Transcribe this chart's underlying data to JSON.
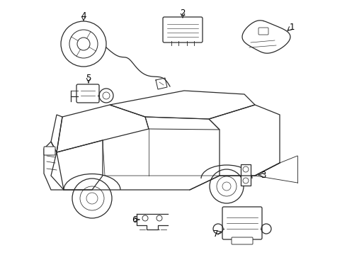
{
  "bg_color": "#ffffff",
  "line_color": "#2a2a2a",
  "fig_width": 4.9,
  "fig_height": 3.6,
  "dpi": 100,
  "label_fontsize": 8.5
}
